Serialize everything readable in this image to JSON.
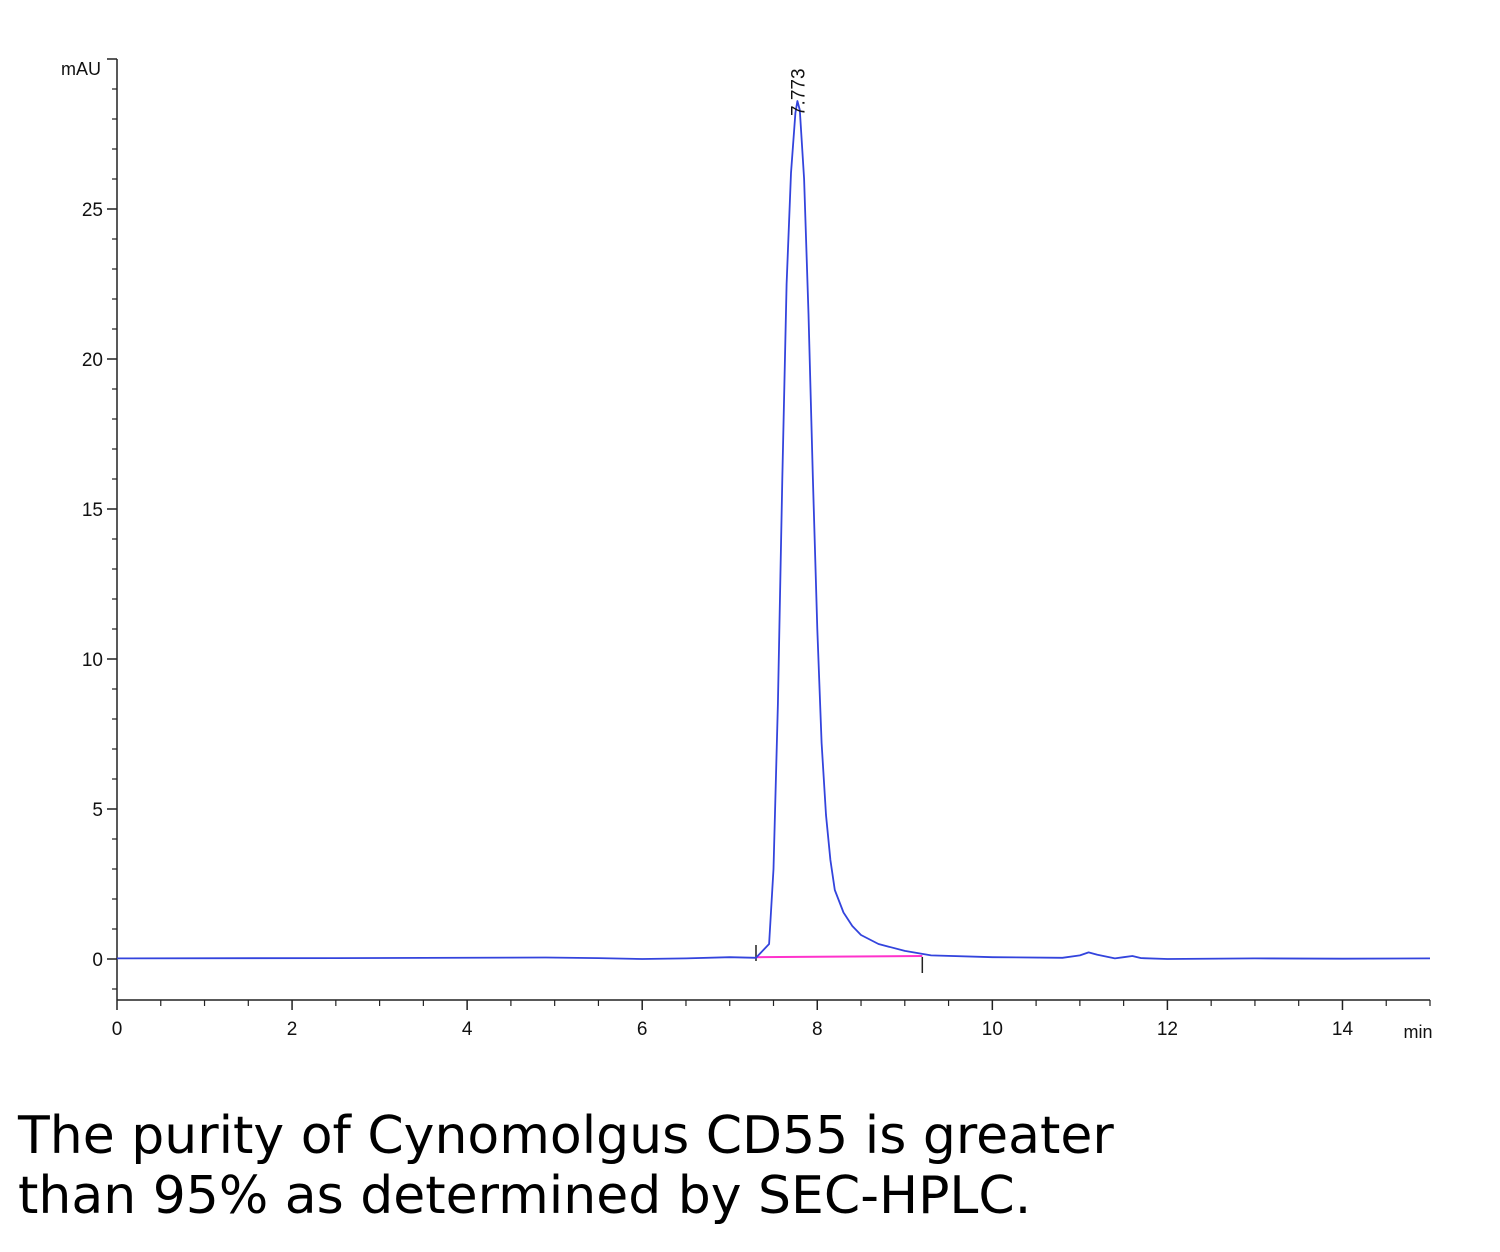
{
  "chart_data": {
    "type": "line",
    "title": "",
    "xlabel": "min",
    "ylabel": "mAU",
    "xlim": [
      0,
      15
    ],
    "ylim": [
      -1.4,
      30
    ],
    "x_ticks": [
      0,
      2,
      4,
      6,
      8,
      10,
      12,
      14
    ],
    "y_ticks": [
      0,
      5,
      10,
      15,
      20,
      25
    ],
    "grid": false,
    "series": [
      {
        "color": "#3344dd",
        "x": [
          0,
          2.5,
          4.9,
          5.5,
          6.0,
          6.5,
          7.0,
          7.3,
          7.45,
          7.5,
          7.55,
          7.6,
          7.65,
          7.7,
          7.75,
          7.773,
          7.8,
          7.85,
          7.9,
          7.95,
          8.0,
          8.05,
          8.1,
          8.15,
          8.2,
          8.3,
          8.4,
          8.5,
          8.7,
          9.0,
          9.3,
          10.0,
          10.8,
          11.0,
          11.1,
          11.2,
          11.4,
          11.5,
          11.6,
          11.7,
          12.0,
          13.0,
          14.0,
          15.0
        ],
        "y": [
          0.02,
          0.03,
          0.05,
          0.03,
          0.0,
          0.02,
          0.06,
          0.04,
          0.5,
          3.0,
          8.5,
          16.0,
          22.5,
          26.2,
          28.2,
          28.6,
          28.3,
          26.0,
          21.5,
          16.0,
          11.0,
          7.2,
          4.8,
          3.3,
          2.3,
          1.55,
          1.1,
          0.8,
          0.5,
          0.27,
          0.12,
          0.06,
          0.04,
          0.12,
          0.22,
          0.14,
          0.02,
          0.06,
          0.1,
          0.03,
          0.0,
          0.02,
          0.01,
          0.02
        ]
      }
    ],
    "baseline": {
      "color": "#ff33cc",
      "x": [
        7.3,
        9.2
      ],
      "y": [
        0.06,
        0.1
      ]
    },
    "integration_marks": [
      7.3,
      9.2
    ],
    "annotations": [
      {
        "x": 7.773,
        "text": "7.773"
      }
    ]
  },
  "caption": {
    "line1": "The purity of Cynomolgus CD55 is greater",
    "line2": "than 95% as determined by SEC-HPLC."
  }
}
